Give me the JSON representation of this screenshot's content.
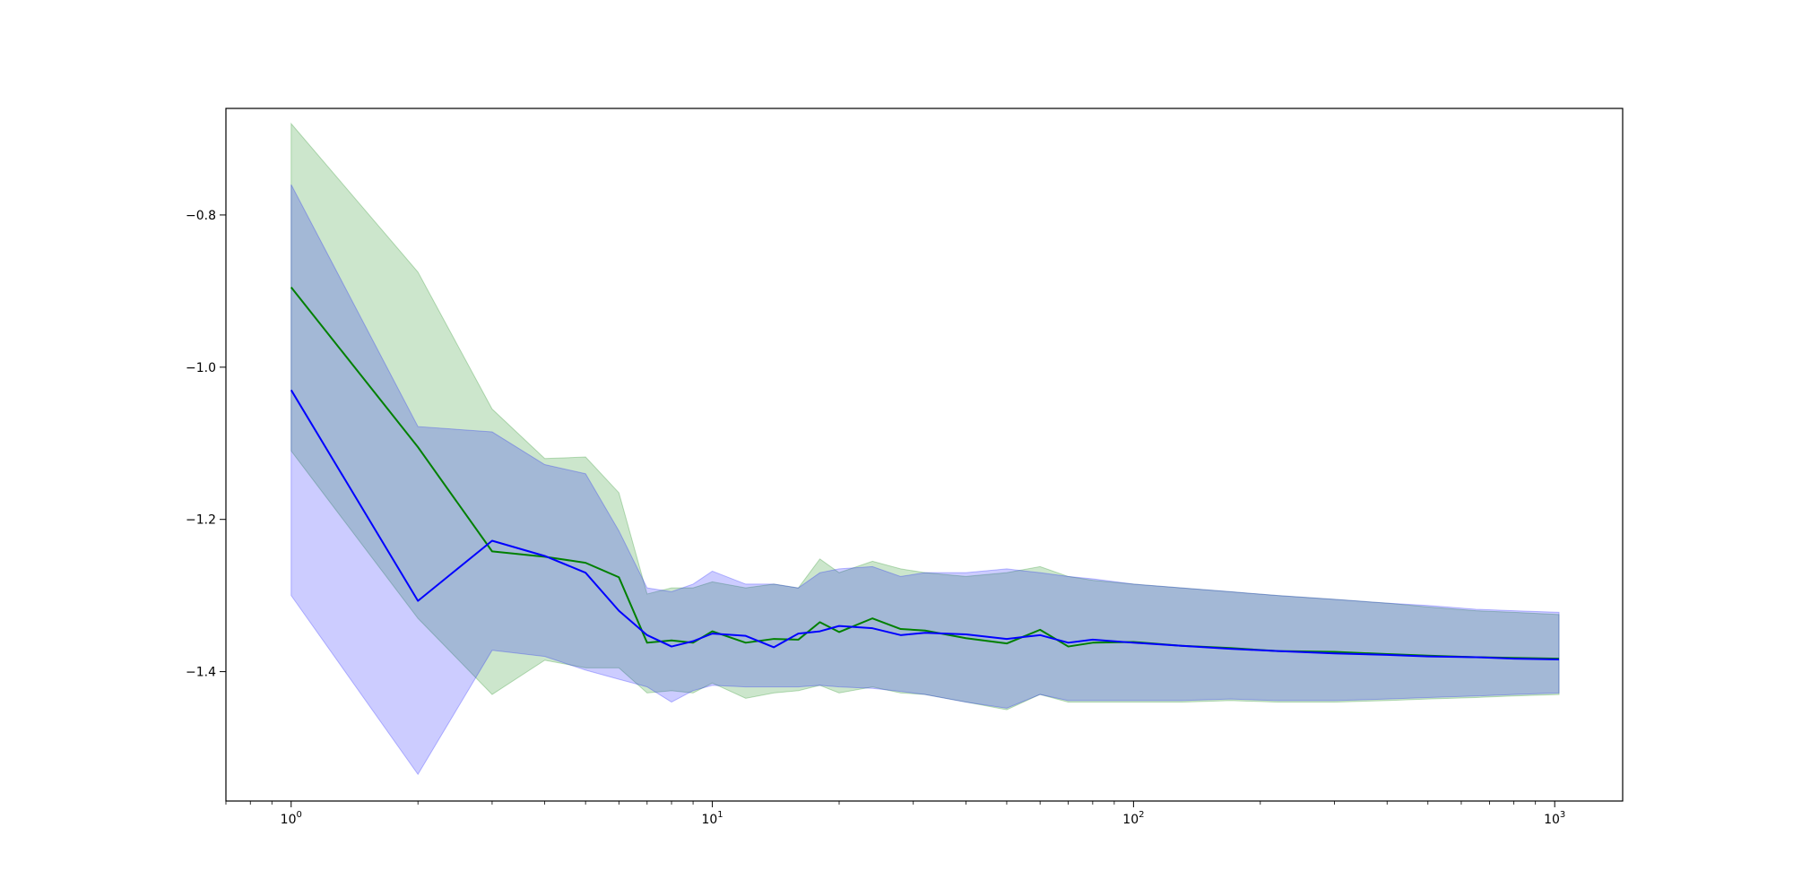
{
  "chart_data": {
    "type": "line",
    "title": "",
    "xlabel": "",
    "ylabel": "",
    "x_scale": "log",
    "xlim": [
      0.7,
      1450
    ],
    "ylim": [
      -1.57,
      -0.66
    ],
    "grid": false,
    "legend": "none",
    "x_ticks": [
      {
        "value": 1,
        "base": "10",
        "exp": "0"
      },
      {
        "value": 10,
        "base": "10",
        "exp": "1"
      },
      {
        "value": 100,
        "base": "10",
        "exp": "2"
      },
      {
        "value": 1000,
        "base": "10",
        "exp": "3"
      }
    ],
    "y_ticks": [
      {
        "value": -0.8,
        "label": "−0.8"
      },
      {
        "value": -1.0,
        "label": "−1.0"
      },
      {
        "value": -1.2,
        "label": "−1.2"
      },
      {
        "value": -1.4,
        "label": "−1.4"
      }
    ],
    "series": [
      {
        "color": "#008000",
        "band_color": "#008000",
        "band_opacity": 0.2,
        "x": [
          1,
          2,
          3,
          4,
          5,
          6,
          7,
          8,
          9,
          10,
          12,
          14,
          16,
          18,
          20,
          24,
          28,
          32,
          40,
          50,
          60,
          70,
          80,
          100,
          130,
          170,
          220,
          300,
          400,
          500,
          650,
          800,
          1024
        ],
        "mean": [
          -0.895,
          -1.105,
          -1.242,
          -1.249,
          -1.257,
          -1.276,
          -1.362,
          -1.359,
          -1.362,
          -1.347,
          -1.362,
          -1.357,
          -1.358,
          -1.335,
          -1.348,
          -1.33,
          -1.344,
          -1.346,
          -1.356,
          -1.363,
          -1.345,
          -1.367,
          -1.362,
          -1.361,
          -1.366,
          -1.369,
          -1.373,
          -1.374,
          -1.377,
          -1.379,
          -1.381,
          -1.382,
          -1.383
        ],
        "upper": [
          -0.68,
          -0.875,
          -1.055,
          -1.12,
          -1.118,
          -1.165,
          -1.298,
          -1.29,
          -1.29,
          -1.282,
          -1.29,
          -1.285,
          -1.29,
          -1.252,
          -1.27,
          -1.255,
          -1.265,
          -1.27,
          -1.275,
          -1.27,
          -1.262,
          -1.275,
          -1.28,
          -1.285,
          -1.29,
          -1.295,
          -1.3,
          -1.305,
          -1.31,
          -1.315,
          -1.32,
          -1.322,
          -1.325
        ],
        "lower": [
          -1.11,
          -1.33,
          -1.43,
          -1.385,
          -1.395,
          -1.395,
          -1.428,
          -1.425,
          -1.428,
          -1.415,
          -1.435,
          -1.428,
          -1.425,
          -1.418,
          -1.428,
          -1.42,
          -1.428,
          -1.43,
          -1.44,
          -1.45,
          -1.43,
          -1.44,
          -1.44,
          -1.44,
          -1.44,
          -1.438,
          -1.44,
          -1.44,
          -1.438,
          -1.436,
          -1.434,
          -1.432,
          -1.43
        ]
      },
      {
        "color": "#0000ff",
        "band_color": "#0000ff",
        "band_opacity": 0.2,
        "x": [
          1,
          2,
          3,
          4,
          5,
          6,
          7,
          8,
          9,
          10,
          12,
          14,
          16,
          18,
          20,
          24,
          28,
          32,
          40,
          50,
          60,
          70,
          80,
          100,
          130,
          170,
          220,
          300,
          400,
          500,
          650,
          800,
          1024
        ],
        "mean": [
          -1.03,
          -1.307,
          -1.228,
          -1.248,
          -1.27,
          -1.32,
          -1.352,
          -1.367,
          -1.36,
          -1.35,
          -1.353,
          -1.368,
          -1.35,
          -1.347,
          -1.34,
          -1.343,
          -1.352,
          -1.349,
          -1.351,
          -1.357,
          -1.352,
          -1.362,
          -1.358,
          -1.362,
          -1.366,
          -1.37,
          -1.373,
          -1.376,
          -1.378,
          -1.38,
          -1.381,
          -1.383,
          -1.384
        ],
        "upper": [
          -0.76,
          -1.078,
          -1.085,
          -1.128,
          -1.14,
          -1.215,
          -1.29,
          -1.295,
          -1.285,
          -1.268,
          -1.285,
          -1.285,
          -1.29,
          -1.27,
          -1.265,
          -1.262,
          -1.275,
          -1.27,
          -1.27,
          -1.265,
          -1.27,
          -1.275,
          -1.278,
          -1.285,
          -1.29,
          -1.295,
          -1.3,
          -1.305,
          -1.31,
          -1.313,
          -1.318,
          -1.32,
          -1.322
        ],
        "lower": [
          -1.3,
          -1.535,
          -1.372,
          -1.38,
          -1.398,
          -1.41,
          -1.42,
          -1.44,
          -1.425,
          -1.418,
          -1.42,
          -1.42,
          -1.42,
          -1.418,
          -1.42,
          -1.422,
          -1.426,
          -1.43,
          -1.44,
          -1.448,
          -1.43,
          -1.438,
          -1.438,
          -1.438,
          -1.438,
          -1.436,
          -1.438,
          -1.438,
          -1.436,
          -1.434,
          -1.432,
          -1.43,
          -1.428
        ]
      }
    ]
  }
}
